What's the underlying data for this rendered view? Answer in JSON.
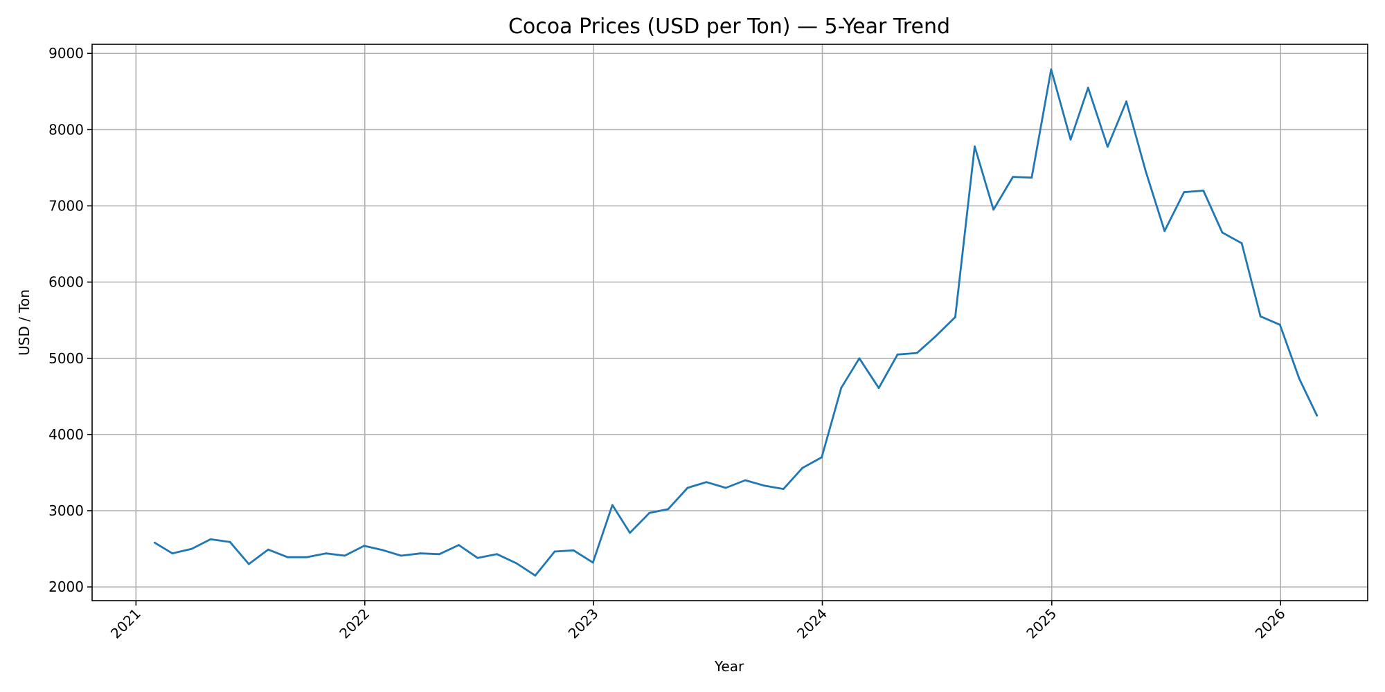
{
  "chart_data": {
    "type": "line",
    "title": "Cocoa Prices (USD per Ton) — 5-Year Trend",
    "xlabel": "Year",
    "ylabel": "USD / Ton",
    "grid": true,
    "x_ticks": [
      "2021",
      "2022",
      "2023",
      "2024",
      "2025",
      "2026"
    ],
    "y_ticks": [
      2000,
      3000,
      4000,
      5000,
      6000,
      7000,
      8000,
      9000
    ],
    "xlim": [
      "2020-10-23",
      "2026-05-20"
    ],
    "ylim": [
      1820,
      9120
    ],
    "colors": {
      "series": "#1f77b4"
    },
    "series": [
      {
        "x": [
          "2021-01-31",
          "2021-02-28",
          "2021-03-31",
          "2021-04-30",
          "2021-05-31",
          "2021-06-30",
          "2021-07-31",
          "2021-08-31",
          "2021-09-30",
          "2021-10-31",
          "2021-11-30",
          "2021-12-31",
          "2022-01-31",
          "2022-02-28",
          "2022-03-31",
          "2022-04-30",
          "2022-05-31",
          "2022-06-30",
          "2022-07-31",
          "2022-08-31",
          "2022-09-30",
          "2022-10-31",
          "2022-11-30",
          "2022-12-31",
          "2023-01-31",
          "2023-02-28",
          "2023-03-31",
          "2023-04-30",
          "2023-05-31",
          "2023-06-30",
          "2023-07-31",
          "2023-08-31",
          "2023-09-30",
          "2023-10-31",
          "2023-11-30",
          "2023-12-31",
          "2024-01-31",
          "2024-02-29",
          "2024-03-31",
          "2024-04-30",
          "2024-05-31",
          "2024-06-30",
          "2024-07-31",
          "2024-08-31",
          "2024-09-30",
          "2024-10-31",
          "2024-11-30",
          "2024-12-31",
          "2025-01-31",
          "2025-02-28",
          "2025-03-31",
          "2025-04-30",
          "2025-05-31",
          "2025-06-30",
          "2025-07-31",
          "2025-08-31",
          "2025-09-30",
          "2025-10-31",
          "2025-11-30",
          "2025-12-31",
          "2026-01-31",
          "2026-02-28"
        ],
        "values": [
          2580,
          2440,
          2500,
          2625,
          2590,
          2300,
          2490,
          2390,
          2390,
          2440,
          2410,
          2540,
          2480,
          2410,
          2440,
          2430,
          2550,
          2380,
          2430,
          2310,
          2150,
          2465,
          2480,
          2320,
          3075,
          2710,
          2970,
          3020,
          3300,
          3375,
          3300,
          3400,
          3330,
          3285,
          3560,
          3700,
          4610,
          5000,
          4610,
          5050,
          5070,
          5290,
          5540,
          7780,
          6950,
          7380,
          7370,
          8790,
          7870,
          8550,
          7775,
          8370,
          7450,
          6670,
          7180,
          7200,
          6650,
          6510,
          5550,
          5440,
          4730,
          4250
        ]
      }
    ]
  }
}
